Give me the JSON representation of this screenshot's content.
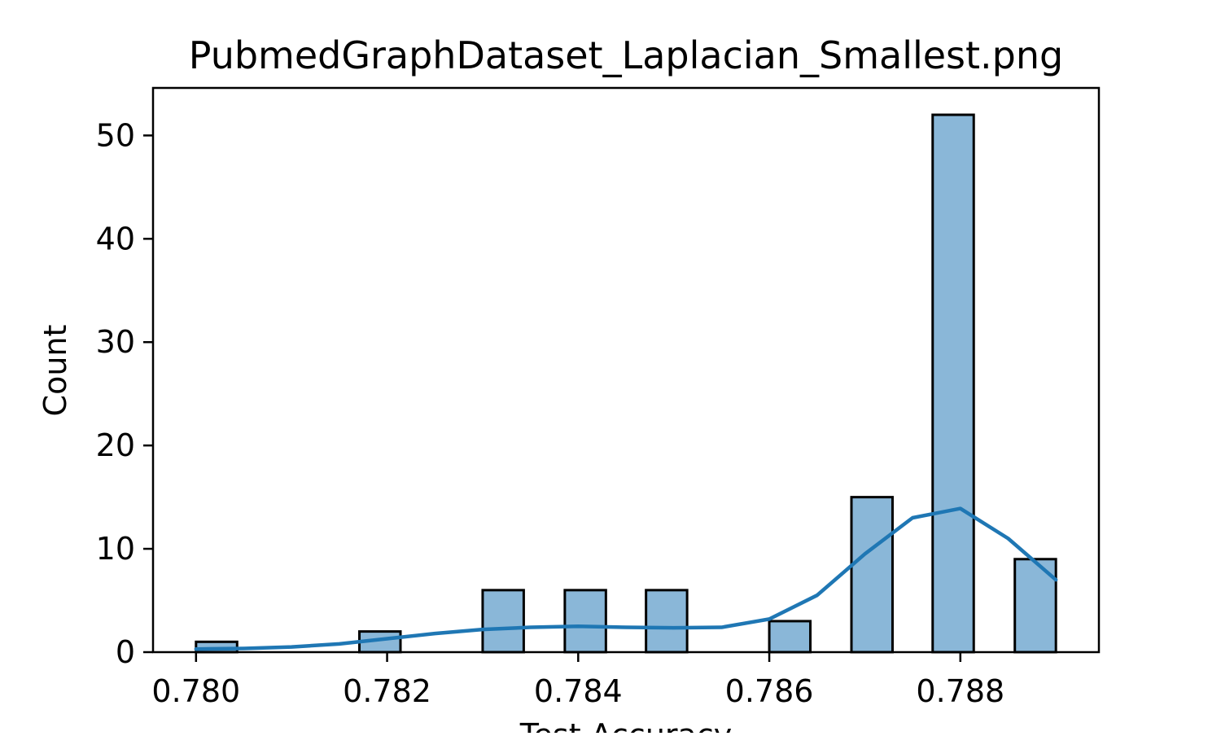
{
  "chart_data": {
    "type": "bar",
    "title": "PubmedGraphDataset_Laplacian_Smallest.png",
    "xlabel": "Test Accuracy",
    "ylabel": "Count",
    "xlim": [
      0.77955,
      0.78945
    ],
    "ylim": [
      0,
      54.6
    ],
    "xticks": [
      0.78,
      0.782,
      0.784,
      0.786,
      0.788
    ],
    "xtick_labels": [
      "0.780",
      "0.782",
      "0.784",
      "0.786",
      "0.788"
    ],
    "yticks": [
      0,
      10,
      20,
      30,
      40,
      50
    ],
    "ytick_labels": [
      "0",
      "10",
      "20",
      "30",
      "40",
      "50"
    ],
    "grid": false,
    "bins": [
      {
        "x0": 0.78,
        "x1": 0.78043,
        "count": 1
      },
      {
        "x0": 0.78171,
        "x1": 0.78214,
        "count": 2
      },
      {
        "x0": 0.783,
        "x1": 0.78343,
        "count": 6
      },
      {
        "x0": 0.78386,
        "x1": 0.78429,
        "count": 6
      },
      {
        "x0": 0.78471,
        "x1": 0.78514,
        "count": 6
      },
      {
        "x0": 0.786,
        "x1": 0.78643,
        "count": 3
      },
      {
        "x0": 0.78686,
        "x1": 0.78729,
        "count": 15
      },
      {
        "x0": 0.78771,
        "x1": 0.78814,
        "count": 52
      },
      {
        "x0": 0.78857,
        "x1": 0.789,
        "count": 9
      }
    ],
    "kde": {
      "x": [
        0.78,
        0.7805,
        0.781,
        0.7815,
        0.782,
        0.7825,
        0.783,
        0.7835,
        0.784,
        0.7845,
        0.785,
        0.7855,
        0.786,
        0.7865,
        0.787,
        0.7875,
        0.788,
        0.7885,
        0.789
      ],
      "y": [
        0.3,
        0.35,
        0.5,
        0.8,
        1.3,
        1.8,
        2.2,
        2.4,
        2.5,
        2.4,
        2.35,
        2.4,
        3.2,
        5.5,
        9.5,
        13.0,
        13.9,
        11.0,
        7.0
      ]
    },
    "bar_fill": "#8ab7d8",
    "bar_edge": "#000000",
    "kde_color": "#1f77b4"
  }
}
